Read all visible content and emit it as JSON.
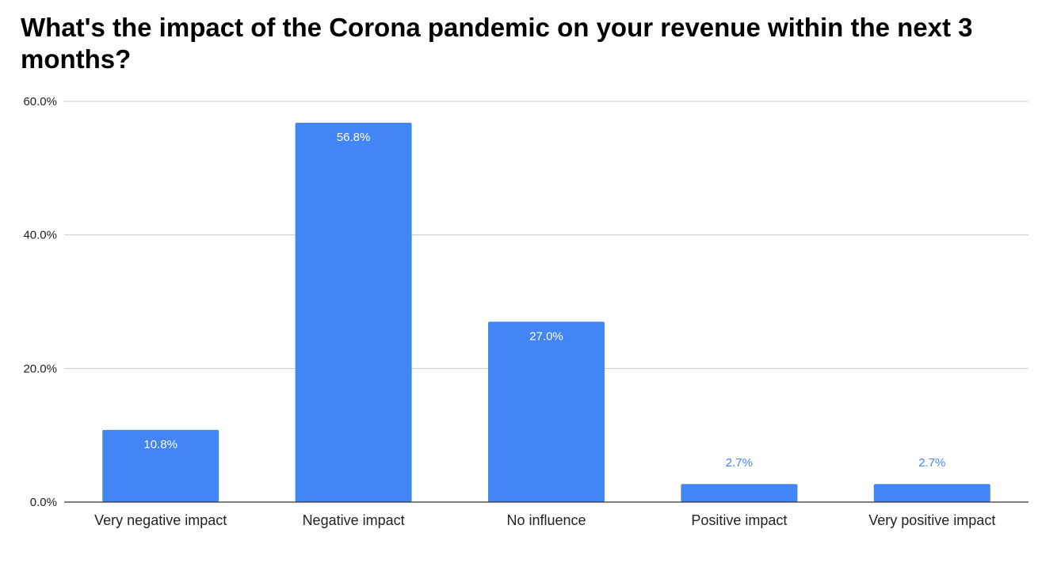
{
  "chart_data": {
    "type": "bar",
    "title": "What's the impact of the Corona pandemic on your revenue within the next 3 months?",
    "xlabel": "",
    "ylabel": "",
    "categories": [
      "Very negative impact",
      "Negative impact",
      "No influence",
      "Positive impact",
      "Very positive impact"
    ],
    "values": [
      10.8,
      56.8,
      27.0,
      2.7,
      2.7
    ],
    "data_labels": [
      "10.8%",
      "56.8%",
      "27.0%",
      "2.7%",
      "2.7%"
    ],
    "ylim": [
      0,
      60
    ],
    "yticks": [
      0,
      20,
      40,
      60
    ],
    "ytick_labels": [
      "0.0%",
      "20.0%",
      "40.0%",
      "60.0%"
    ],
    "grid": true,
    "legend": "none",
    "colors": {
      "bar": "#4285f4",
      "label_inside": "#ffffff",
      "label_outside": "#4285f4",
      "gridline": "#cccccc",
      "axis": "#333333"
    }
  }
}
